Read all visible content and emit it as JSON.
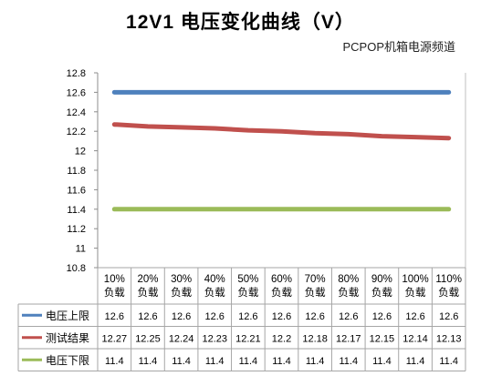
{
  "chart_data": {
    "type": "line",
    "title": "12V1 电压变化曲线（V）",
    "subtitle": "PCPOP机箱电源频道",
    "categories": [
      [
        "10%",
        "负载"
      ],
      [
        "20%",
        "负载"
      ],
      [
        "30%",
        "负载"
      ],
      [
        "40%",
        "负载"
      ],
      [
        "50%",
        "负载"
      ],
      [
        "60%",
        "负载"
      ],
      [
        "70%",
        "负载"
      ],
      [
        "80%",
        "负载"
      ],
      [
        "90%",
        "负载"
      ],
      [
        "100%",
        "负载"
      ],
      [
        "110%",
        "负载"
      ]
    ],
    "ylim": [
      10.8,
      12.8
    ],
    "yticks": [
      "12.8",
      "12.6",
      "12.4",
      "12.2",
      "12",
      "11.8",
      "11.6",
      "11.4",
      "11.2",
      "11",
      "10.8"
    ],
    "grid": false,
    "legend": "data-table-left",
    "series": [
      {
        "name": "电压上限",
        "color": "#4f81bd",
        "values": [
          12.6,
          12.6,
          12.6,
          12.6,
          12.6,
          12.6,
          12.6,
          12.6,
          12.6,
          12.6,
          12.6
        ],
        "labels": [
          "12.6",
          "12.6",
          "12.6",
          "12.6",
          "12.6",
          "12.6",
          "12.6",
          "12.6",
          "12.6",
          "12.6",
          "12.6"
        ]
      },
      {
        "name": "测试结果",
        "color": "#c0504d",
        "values": [
          12.27,
          12.25,
          12.24,
          12.23,
          12.21,
          12.2,
          12.18,
          12.17,
          12.15,
          12.14,
          12.13
        ],
        "labels": [
          "12.27",
          "12.25",
          "12.24",
          "12.23",
          "12.21",
          "12.2",
          "12.18",
          "12.17",
          "12.15",
          "12.14",
          "12.13"
        ]
      },
      {
        "name": "电压下限",
        "color": "#9bbb59",
        "values": [
          11.4,
          11.4,
          11.4,
          11.4,
          11.4,
          11.4,
          11.4,
          11.4,
          11.4,
          11.4,
          11.4
        ],
        "labels": [
          "11.4",
          "11.4",
          "11.4",
          "11.4",
          "11.4",
          "11.4",
          "11.4",
          "11.4",
          "11.4",
          "11.4",
          "11.4"
        ]
      }
    ]
  }
}
